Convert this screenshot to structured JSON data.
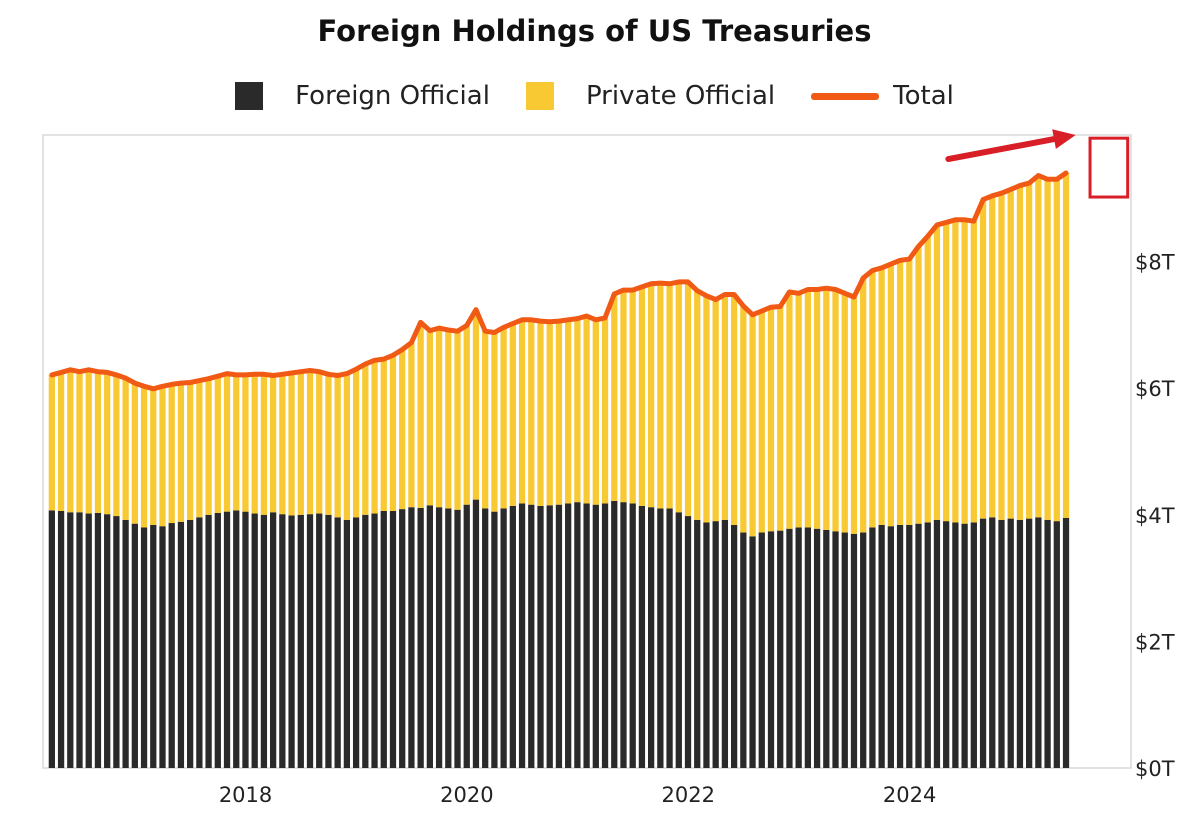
{
  "chart_data": {
    "type": "bar",
    "stacked": true,
    "title": "Foreign Holdings of US Treasuries",
    "legend": [
      {
        "name": "Foreign Official",
        "marker": "square",
        "color": "#2a2a2a"
      },
      {
        "name": "Private Official",
        "marker": "square",
        "color": "#f9c934"
      },
      {
        "name": "Total",
        "marker": "line",
        "color": "#f05a14"
      }
    ],
    "legend_position": "top-center",
    "y_axis": {
      "side": "right",
      "min": 0,
      "max": 10,
      "ticks": [
        0,
        2,
        4,
        6,
        8
      ],
      "tick_labels": [
        "$0T",
        "$2T",
        "$4T",
        "$6T",
        "$8T"
      ],
      "unit": "trillion USD"
    },
    "x_axis": {
      "min": 2016.17,
      "max": 2026.0,
      "ticks": [
        2018,
        2020,
        2022,
        2024
      ],
      "tick_labels": [
        "2018",
        "2020",
        "2022",
        "2024"
      ]
    },
    "x_start": 2016.25,
    "x_step": 0.0833,
    "series": [
      {
        "name": "Foreign Official",
        "color": "#2a2a2a",
        "values": [
          4.07,
          4.06,
          4.04,
          4.04,
          4.02,
          4.03,
          4.01,
          3.98,
          3.92,
          3.86,
          3.8,
          3.84,
          3.82,
          3.87,
          3.89,
          3.92,
          3.96,
          4.0,
          4.03,
          4.05,
          4.07,
          4.05,
          4.02,
          4.0,
          4.04,
          4.01,
          3.99,
          4.0,
          4.01,
          4.02,
          4.0,
          3.96,
          3.92,
          3.96,
          4.0,
          4.02,
          4.06,
          4.06,
          4.09,
          4.12,
          4.11,
          4.15,
          4.12,
          4.1,
          4.08,
          4.16,
          4.24,
          4.1,
          4.05,
          4.1,
          4.14,
          4.18,
          4.16,
          4.14,
          4.15,
          4.16,
          4.18,
          4.2,
          4.18,
          4.16,
          4.18,
          4.22,
          4.2,
          4.18,
          4.14,
          4.12,
          4.1,
          4.1,
          4.04,
          3.98,
          3.92,
          3.88,
          3.9,
          3.92,
          3.84,
          3.72,
          3.66,
          3.72,
          3.74,
          3.75,
          3.78,
          3.8,
          3.8,
          3.78,
          3.76,
          3.74,
          3.72,
          3.7,
          3.72,
          3.8,
          3.84,
          3.82,
          3.84,
          3.84,
          3.86,
          3.88,
          3.92,
          3.9,
          3.88,
          3.86,
          3.88,
          3.94,
          3.96,
          3.92,
          3.94,
          3.92,
          3.94,
          3.96,
          3.92,
          3.9,
          3.95
        ]
      },
      {
        "name": "Private Official",
        "color": "#f9c934",
        "values": [
          2.14,
          2.19,
          2.25,
          2.22,
          2.27,
          2.23,
          2.24,
          2.23,
          2.24,
          2.22,
          2.23,
          2.15,
          2.21,
          2.19,
          2.19,
          2.17,
          2.16,
          2.15,
          2.16,
          2.18,
          2.14,
          2.16,
          2.2,
          2.22,
          2.16,
          2.21,
          2.25,
          2.26,
          2.27,
          2.24,
          2.22,
          2.24,
          2.31,
          2.34,
          2.38,
          2.42,
          2.4,
          2.46,
          2.52,
          2.6,
          2.93,
          2.76,
          2.83,
          2.82,
          2.82,
          2.83,
          3.0,
          2.8,
          2.83,
          2.86,
          2.88,
          2.9,
          2.92,
          2.92,
          2.9,
          2.9,
          2.9,
          2.9,
          2.96,
          2.92,
          2.93,
          3.27,
          3.35,
          3.37,
          3.46,
          3.53,
          3.56,
          3.55,
          3.64,
          3.7,
          3.62,
          3.58,
          3.5,
          3.56,
          3.64,
          3.58,
          3.5,
          3.5,
          3.54,
          3.54,
          3.74,
          3.7,
          3.76,
          3.78,
          3.82,
          3.82,
          3.78,
          3.74,
          4.02,
          4.06,
          4.06,
          4.14,
          4.18,
          4.2,
          4.38,
          4.52,
          4.66,
          4.72,
          4.78,
          4.8,
          4.76,
          5.04,
          5.08,
          5.16,
          5.2,
          5.28,
          5.3,
          5.4,
          5.38,
          5.4,
          5.45
        ]
      }
    ],
    "totals": [
      6.21,
      6.25,
      6.29,
      6.26,
      6.29,
      6.26,
      6.25,
      6.21,
      6.16,
      6.08,
      6.03,
      5.99,
      6.03,
      6.06,
      6.08,
      6.09,
      6.12,
      6.15,
      6.19,
      6.23,
      6.21,
      6.21,
      6.22,
      6.22,
      6.2,
      6.22,
      6.24,
      6.26,
      6.28,
      6.26,
      6.22,
      6.2,
      6.23,
      6.3,
      6.38,
      6.44,
      6.46,
      6.52,
      6.61,
      6.72,
      7.04,
      6.91,
      6.95,
      6.92,
      6.9,
      6.99,
      7.24,
      6.9,
      6.88,
      6.96,
      7.02,
      7.08,
      7.08,
      7.06,
      7.05,
      7.06,
      7.08,
      7.1,
      7.14,
      7.08,
      7.11,
      7.49,
      7.55,
      7.55,
      7.6,
      7.65,
      7.66,
      7.65,
      7.68,
      7.68,
      7.54,
      7.46,
      7.4,
      7.48,
      7.48,
      7.3,
      7.16,
      7.22,
      7.28,
      7.29,
      7.52,
      7.5,
      7.56,
      7.56,
      7.58,
      7.56,
      7.5,
      7.44,
      7.74,
      7.86,
      7.9,
      7.96,
      8.02,
      8.04,
      8.24,
      8.4,
      8.58,
      8.62,
      8.66,
      8.66,
      8.64,
      8.98,
      9.04,
      9.08,
      9.14,
      9.2,
      9.24,
      9.36,
      9.3,
      9.3,
      9.4
    ]
  },
  "annotations": [
    {
      "kind": "highlight-box",
      "color": "#d81e26",
      "from_x": 2025.63,
      "to_x": 2025.97,
      "from_y": 9.02,
      "to_y": 9.95
    },
    {
      "kind": "arrow",
      "color": "#d81e26",
      "from_x": 2024.35,
      "from_y": 9.62,
      "to_x": 2025.5,
      "to_y": 10.0
    }
  ]
}
